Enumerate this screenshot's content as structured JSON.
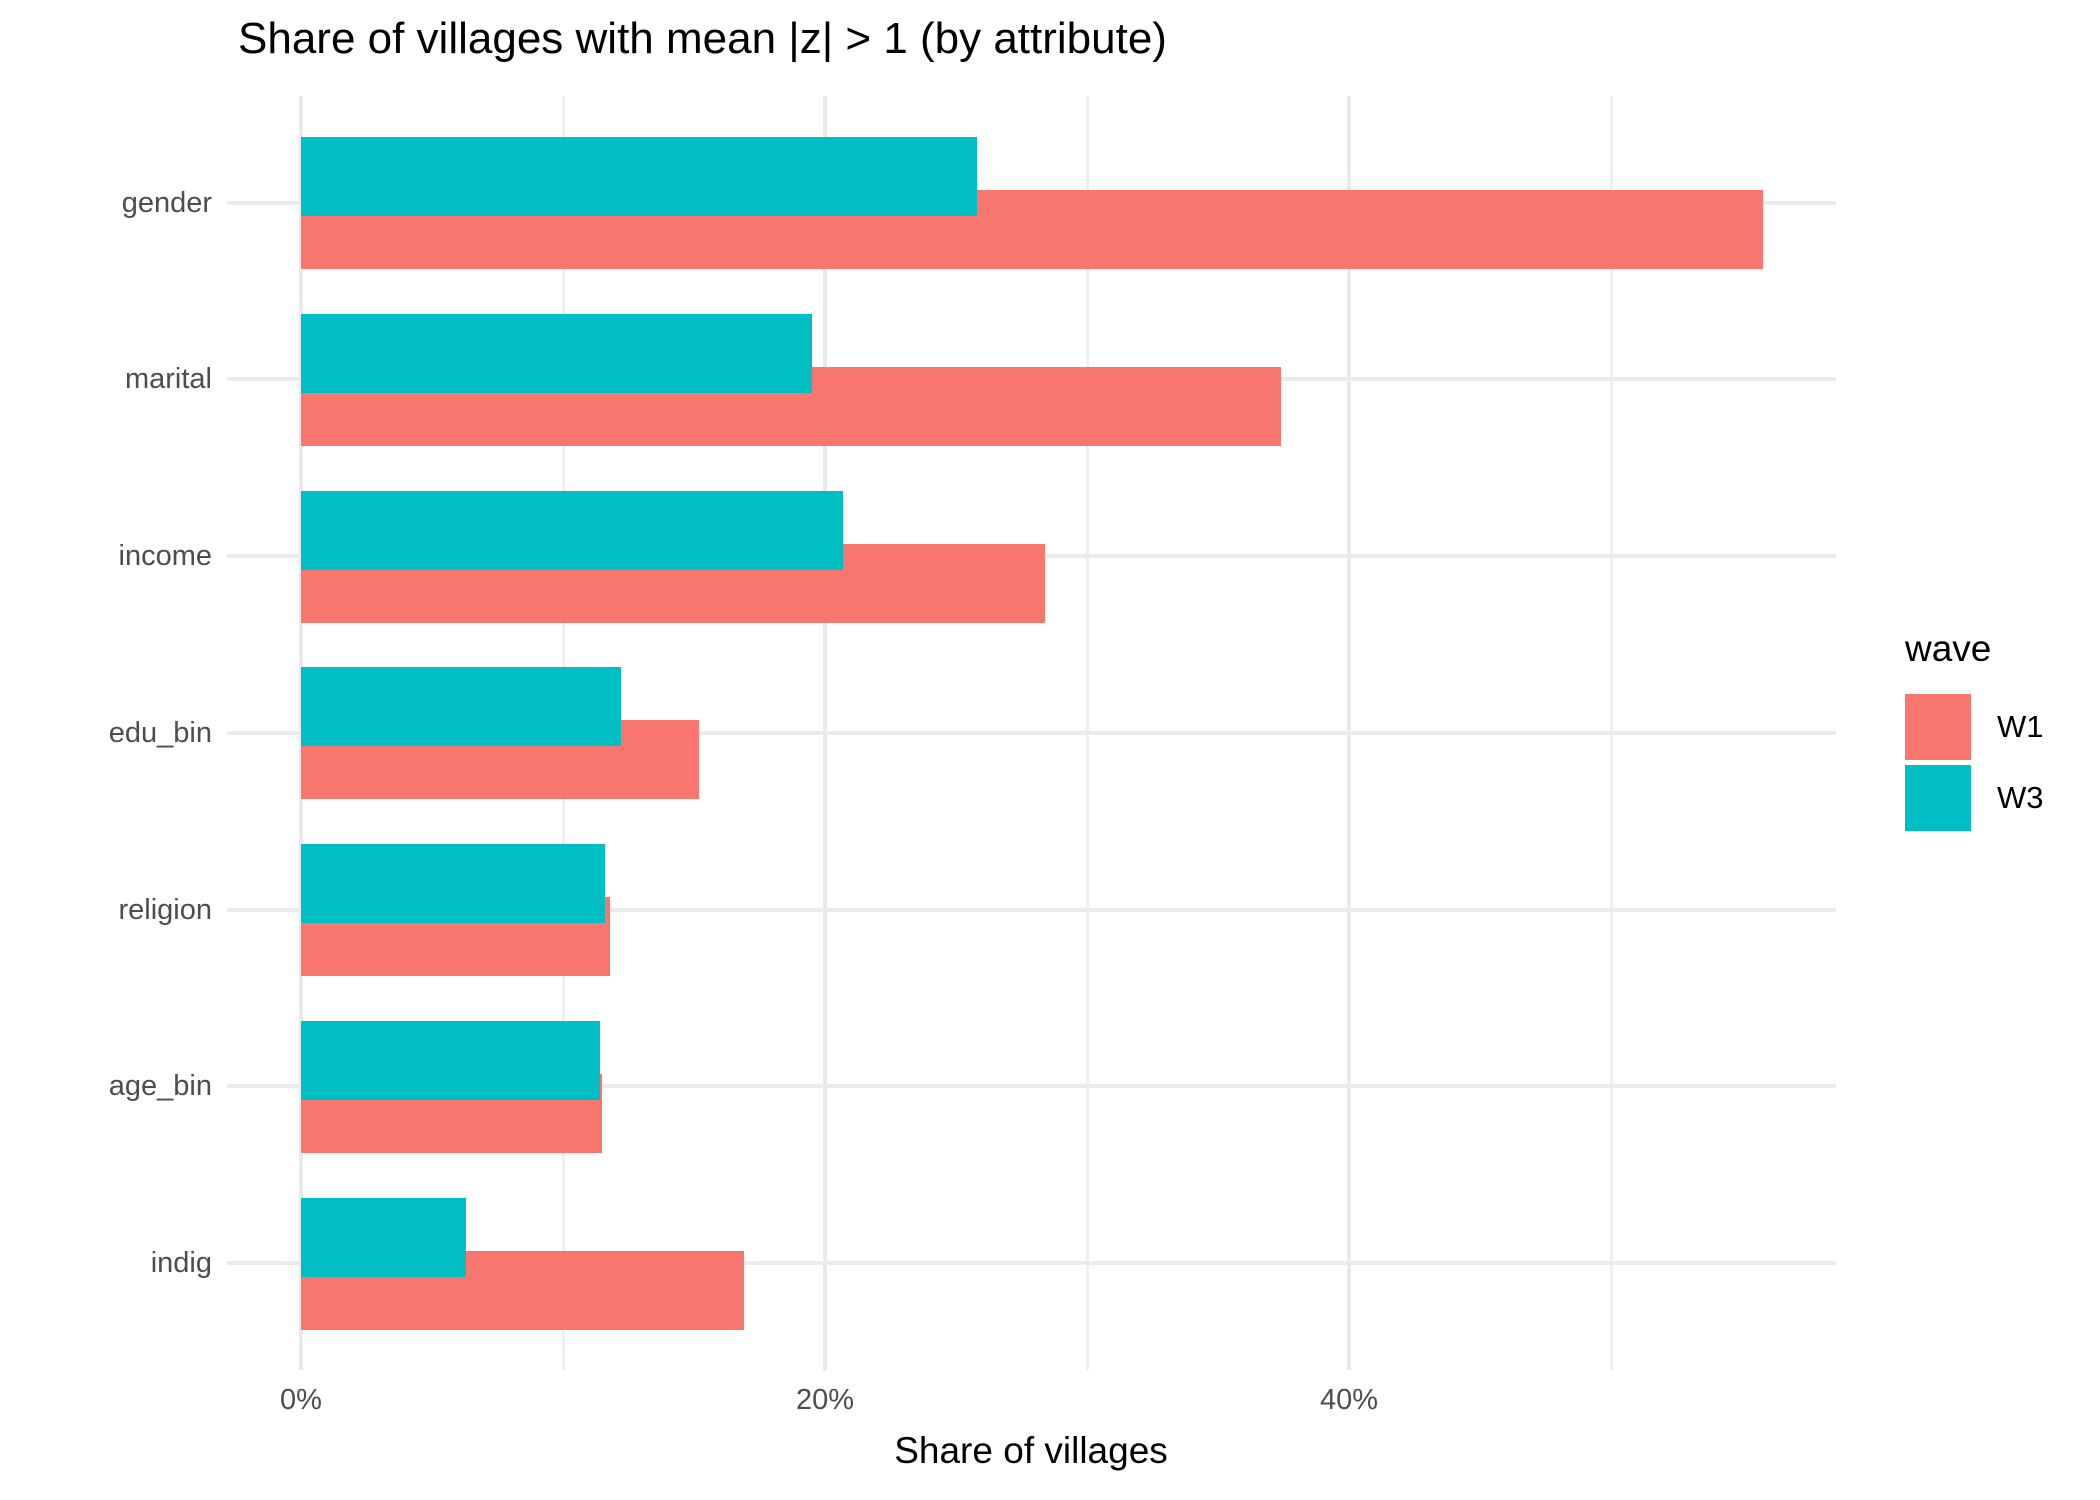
{
  "chart_data": {
    "type": "bar",
    "orientation": "horizontal",
    "title": "Share of villages with mean |z| > 1 (by attribute)",
    "xlabel": "Share of villages",
    "ylabel": "",
    "categories": [
      "gender",
      "marital",
      "income",
      "edu_bin",
      "religion",
      "age_bin",
      "indig"
    ],
    "series": [
      {
        "name": "W1",
        "color": "#F8766D",
        "values": [
          55.8,
          37.4,
          28.4,
          15.2,
          11.8,
          11.5,
          16.9
        ]
      },
      {
        "name": "W3",
        "color": "#00BFC4",
        "values": [
          25.8,
          19.5,
          20.7,
          12.2,
          11.6,
          11.4,
          6.3
        ]
      }
    ],
    "unit": "%",
    "x_major_ticks": [
      {
        "label": "0%",
        "value": 0
      },
      {
        "label": "20%",
        "value": 20
      },
      {
        "label": "40%",
        "value": 40
      }
    ],
    "x_minor_gridlines": [
      10,
      30,
      50
    ],
    "xlim": [
      -2.9,
      58.6
    ],
    "grid": true,
    "legend": {
      "title": "wave",
      "position": "right",
      "entries": [
        {
          "label": "W1",
          "color": "#F8766D"
        },
        {
          "label": "W3",
          "color": "#00BFC4"
        }
      ]
    },
    "colors": {
      "background": "#FFFFFF",
      "gridline": "#EBEBEB",
      "axis_text": "#4D4D4D",
      "text": "#000000"
    }
  }
}
